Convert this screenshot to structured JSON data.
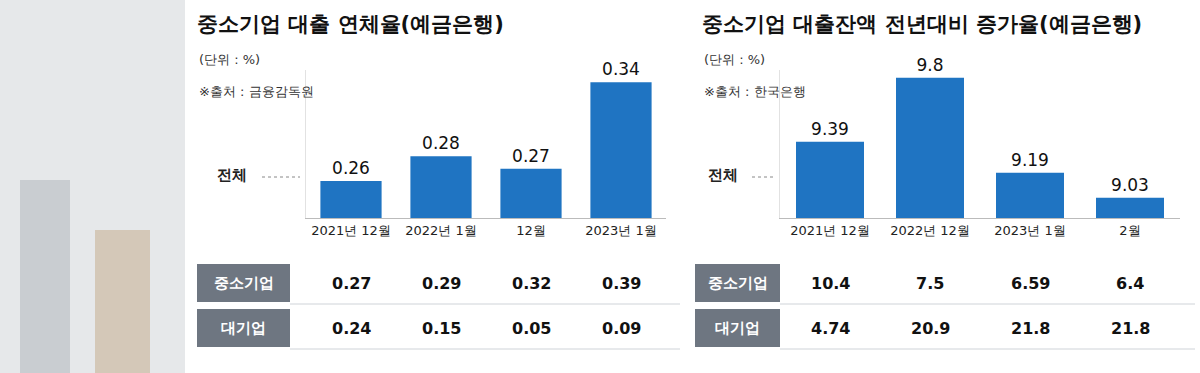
{
  "chart_data": [
    {
      "type": "bar",
      "title": "중소기업 대출 연체율(예금은행)",
      "subtitle": "(단위 : %)",
      "source": "※출처 : 금융감독원",
      "categories": [
        "2021년 12월",
        "2022년 1월",
        "12월",
        "2023년 1월"
      ],
      "series": [
        {
          "name": "전체",
          "color": "#1f74c2",
          "values": [
            0.26,
            0.28,
            0.27,
            0.34
          ]
        }
      ],
      "ylim": [
        0.23,
        0.35
      ],
      "yticks": [],
      "tick_labels": "x",
      "data_labels": true,
      "table": {
        "rows": [
          {
            "label": "중소기업",
            "values": [
              0.27,
              0.29,
              0.32,
              0.39
            ]
          },
          {
            "label": "대기업",
            "values": [
              0.24,
              0.15,
              0.05,
              0.09
            ]
          }
        ]
      }
    },
    {
      "type": "bar",
      "title": "중소기업 대출잔액 전년대비 증가율(예금은행)",
      "subtitle": "(단위 : %)",
      "source": "※출처 : 한국은행",
      "categories": [
        "2021년 12월",
        "2022년 12월",
        "2023년 1월",
        "2월"
      ],
      "series": [
        {
          "name": "전체",
          "color": "#1f74c2",
          "values": [
            9.39,
            9.8,
            9.19,
            9.03
          ]
        }
      ],
      "ylim": [
        8.9,
        9.85
      ],
      "yticks": [],
      "tick_labels": "x",
      "data_labels": true,
      "table": {
        "rows": [
          {
            "label": "중소기업",
            "values": [
              10.4,
              7.5,
              6.59,
              6.4
            ]
          },
          {
            "label": "대기업",
            "values": [
              4.74,
              20.9,
              21.8,
              21.8
            ]
          }
        ]
      }
    }
  ]
}
